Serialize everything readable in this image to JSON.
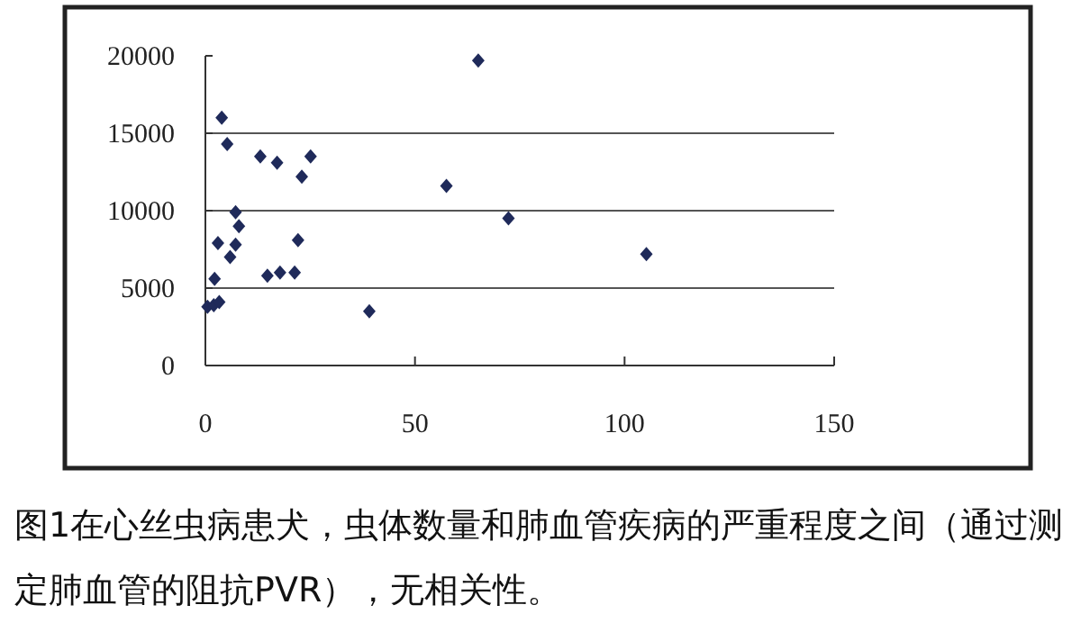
{
  "chart_data": {
    "type": "scatter",
    "x": [
      0.5,
      2.0,
      3.3,
      2.2,
      3.0,
      7.2,
      5.9,
      7.2,
      8.0,
      3.9,
      5.2,
      13.1,
      17.1,
      25.1,
      23.0,
      22.1,
      14.8,
      17.8,
      21.3,
      39.1,
      57.5,
      65.1,
      72.3,
      105.2
    ],
    "series": [
      {
        "color": "#1f2a5a",
        "values": [
          3800,
          3900,
          4100,
          5600,
          7900,
          7800,
          7000,
          9900,
          9000,
          16000,
          14300,
          13500,
          13100,
          13500,
          12200,
          8100,
          5800,
          6000,
          6000,
          3500,
          11600,
          19700,
          9500,
          7200
        ]
      }
    ],
    "xlim": [
      0,
      150
    ],
    "ylim": [
      0,
      20000
    ],
    "xticks": [
      0,
      50,
      100,
      150
    ],
    "yticks": [
      0,
      5000,
      10000,
      15000,
      20000
    ],
    "grid": "y",
    "marker": "diamond",
    "annotations": [
      "图1在心丝虫病患犬，虫体数量和肺血管疾病的严重程度之间（通过测定肺血管的阻抗PVR），无相关性。"
    ]
  }
}
